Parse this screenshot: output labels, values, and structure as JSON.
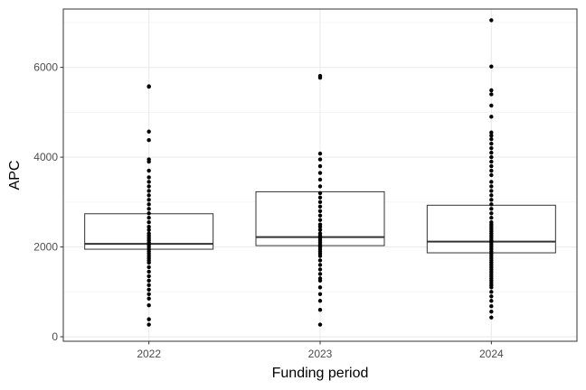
{
  "chart_data": {
    "type": "boxplot",
    "xlabel": "Funding period",
    "ylabel": "APC",
    "categories": [
      "2022",
      "2023",
      "2024"
    ],
    "ylim": [
      -100,
      7300
    ],
    "y_ticks": [
      0,
      2000,
      4000,
      6000
    ],
    "y_tick_labels": [
      "0",
      "2000",
      "4000",
      "6000"
    ],
    "grid": true,
    "boxes": [
      {
        "category": "2022",
        "q1": 1950,
        "median": 2070,
        "q3": 2740
      },
      {
        "category": "2023",
        "q1": 2030,
        "median": 2220,
        "q3": 3230
      },
      {
        "category": "2024",
        "q1": 1870,
        "median": 2120,
        "q3": 2930
      }
    ],
    "points": [
      {
        "category": "2022",
        "values": [
          5580,
          5570,
          4570,
          4380,
          3950,
          3900,
          3700,
          3550,
          3450,
          3350,
          3250,
          3150,
          3050,
          2950,
          2850,
          2750,
          2650,
          2550,
          2450,
          2380,
          2300,
          2250,
          2200,
          2150,
          2100,
          2050,
          2000,
          1950,
          1900,
          1850,
          1800,
          1750,
          1700,
          1650,
          1550,
          1450,
          1350,
          1250,
          1150,
          1050,
          950,
          850,
          700,
          390,
          270
        ]
      },
      {
        "category": "2023",
        "values": [
          5810,
          5770,
          4080,
          3950,
          3800,
          3650,
          3500,
          3350,
          3200,
          3100,
          3000,
          2900,
          2800,
          2700,
          2600,
          2500,
          2450,
          2380,
          2300,
          2250,
          2200,
          2150,
          2100,
          2050,
          2000,
          1950,
          1900,
          1850,
          1800,
          1700,
          1600,
          1500,
          1400,
          1300,
          1250,
          1100,
          950,
          800,
          600,
          270
        ]
      },
      {
        "category": "2024",
        "values": [
          7050,
          6020,
          5490,
          5400,
          5150,
          4900,
          4550,
          4480,
          4400,
          4300,
          4200,
          4100,
          4000,
          3900,
          3800,
          3700,
          3600,
          3450,
          3350,
          3250,
          3150,
          3050,
          2950,
          2850,
          2750,
          2650,
          2550,
          2500,
          2450,
          2400,
          2350,
          2300,
          2250,
          2200,
          2150,
          2100,
          2050,
          2000,
          1950,
          1900,
          1850,
          1800,
          1750,
          1700,
          1650,
          1600,
          1550,
          1500,
          1450,
          1400,
          1350,
          1300,
          1250,
          1200,
          1150,
          1100,
          1000,
          900,
          800,
          680,
          560,
          430
        ]
      }
    ]
  }
}
